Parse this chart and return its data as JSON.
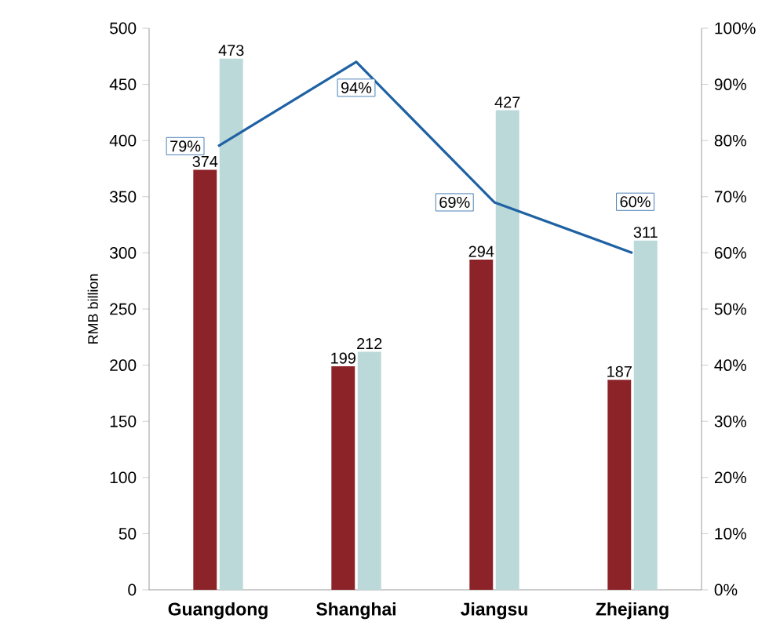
{
  "chart_data": {
    "type": "bar",
    "ylabel": "RMB billion",
    "categories": [
      "Guangdong",
      "Shanghai",
      "Jiangsu",
      "Zhejiang"
    ],
    "series": [
      {
        "color": "#8b2328",
        "values": [
          374,
          199,
          294,
          187
        ],
        "value_labels": [
          "374",
          "199",
          "294",
          "187"
        ]
      },
      {
        "color": "#bcd9d9",
        "values": [
          473,
          212,
          427,
          311
        ],
        "value_labels": [
          "473",
          "212",
          "427",
          "311"
        ]
      },
      {
        "type": "line",
        "axis": "y2",
        "color": "#1f62a4",
        "values": [
          79,
          94,
          69,
          60
        ],
        "value_labels": [
          "79%",
          "94%",
          "69%",
          "60%"
        ]
      }
    ],
    "ylim": [
      0,
      500
    ],
    "yticks": [
      0,
      50,
      100,
      150,
      200,
      250,
      300,
      350,
      400,
      450,
      500
    ],
    "y2lim": [
      0,
      100
    ],
    "y2ticks": [
      {
        "value": 0,
        "label": "0%"
      },
      {
        "value": 10,
        "label": "10%"
      },
      {
        "value": 20,
        "label": "20%"
      },
      {
        "value": 30,
        "label": "30%"
      },
      {
        "value": 40,
        "label": "40%"
      },
      {
        "value": 50,
        "label": "50%"
      },
      {
        "value": 60,
        "label": "60%"
      },
      {
        "value": 70,
        "label": "70%"
      },
      {
        "value": 80,
        "label": "80%"
      },
      {
        "value": 90,
        "label": "90%"
      },
      {
        "value": 100,
        "label": "100%"
      }
    ]
  }
}
